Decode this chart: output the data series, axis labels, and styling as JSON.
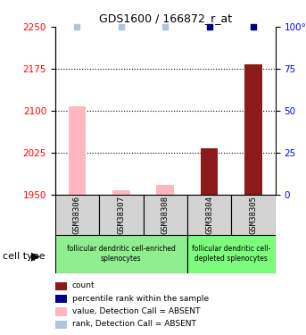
{
  "title": "GDS1600 / 166872_r_at",
  "samples": [
    "GSM38306",
    "GSM38307",
    "GSM38308",
    "GSM38304",
    "GSM38305"
  ],
  "ylim_left": [
    1950,
    2250
  ],
  "ylim_right": [
    0,
    100
  ],
  "yticks_left": [
    1950,
    2025,
    2100,
    2175,
    2250
  ],
  "yticks_right": [
    0,
    25,
    50,
    75,
    100
  ],
  "bar_values": [
    2107,
    1957,
    1967,
    2033,
    2183
  ],
  "bar_absent": [
    true,
    true,
    true,
    false,
    false
  ],
  "rank_values": [
    100,
    100,
    100,
    100,
    100
  ],
  "rank_absent": [
    true,
    true,
    true,
    false,
    false
  ],
  "color_present_bar": "#8B1A1A",
  "color_absent_bar": "#FFB6C1",
  "color_present_rank": "#00008B",
  "color_absent_rank": "#B0C4DE",
  "groups": [
    {
      "label": "follicular dendritic cell-enriched\nsplenocytes",
      "samples": [
        0,
        1,
        2
      ],
      "color": "#90EE90"
    },
    {
      "label": "follicular dendritic cell-\ndepleted splenocytes",
      "samples": [
        3,
        4
      ],
      "color": "#7CFC7C"
    }
  ],
  "cell_type_label": "cell type",
  "legend_items": [
    {
      "color": "#8B1A1A",
      "label": "count"
    },
    {
      "color": "#00008B",
      "label": "percentile rank within the sample"
    },
    {
      "color": "#FFB6C1",
      "label": "value, Detection Call = ABSENT"
    },
    {
      "color": "#B0C4DE",
      "label": "rank, Detection Call = ABSENT"
    }
  ],
  "bar_width": 0.4,
  "dotted_lines": [
    2025,
    2100,
    2175
  ],
  "background_color": "#ffffff"
}
